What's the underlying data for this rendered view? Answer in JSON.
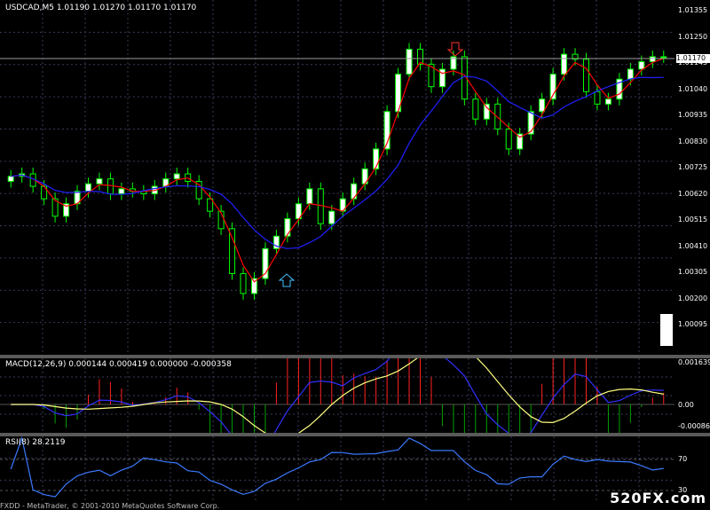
{
  "main": {
    "title": "USDCAD,M5  1.01190 1.01270 1.01170 1.01170",
    "current_price": "1.01170",
    "price_labels": [
      "1.01355",
      "1.01250",
      "1.01145",
      "1.01040",
      "1.00935",
      "1.00830",
      "1.00725",
      "1.00620",
      "1.00515",
      "1.00410",
      "1.00305",
      "1.00200",
      "1.00095"
    ],
    "colors": {
      "bull": "#00ff00",
      "bear": "#00ff00",
      "ma_red": "#ff0000",
      "ma_blue": "#2020ff",
      "grid": "#404060"
    }
  },
  "macd": {
    "title": "MACD(12,26,9) 0.000144 0.000419 0.000000 -0.000358",
    "labels": [
      "0.001639",
      "0.00",
      "-0.000860"
    ]
  },
  "rsi": {
    "title": "RSI(8) 28.2119",
    "labels": [
      "70",
      "30"
    ]
  },
  "footer": "FXDD - MetaTrader, © 2001-2010 MetaQuotes Software Corp.",
  "watermark": "520FX.com",
  "chart_data": {
    "type": "line",
    "series": [
      {
        "values": [
          1.0069,
          1.007,
          1.0065,
          1.006,
          1.0053,
          1.0058,
          1.0063,
          1.0066,
          1.0068,
          1.0062,
          1.0064,
          1.0063,
          1.0062,
          1.0065,
          1.0068,
          1.007,
          1.0067,
          1.006,
          1.0055,
          1.0048,
          1.003,
          1.0022,
          1.0028,
          1.004,
          1.0045,
          1.0052,
          1.0058,
          1.0064,
          1.005,
          1.0055,
          1.006,
          1.0066,
          1.0072,
          1.008,
          1.0095,
          1.011,
          1.012,
          1.0114,
          1.0105,
          1.0112,
          1.0117,
          1.01,
          1.0092,
          1.0098,
          1.0088,
          1.008,
          1.0086,
          1.0095,
          1.01,
          1.011,
          1.0118,
          1.0116,
          1.0103,
          1.0098,
          1.01,
          1.0108,
          1.0112,
          1.0115,
          1.0117,
          1.0117
        ]
      }
    ],
    "ylim": [
      1.00095,
      1.01355
    ]
  }
}
